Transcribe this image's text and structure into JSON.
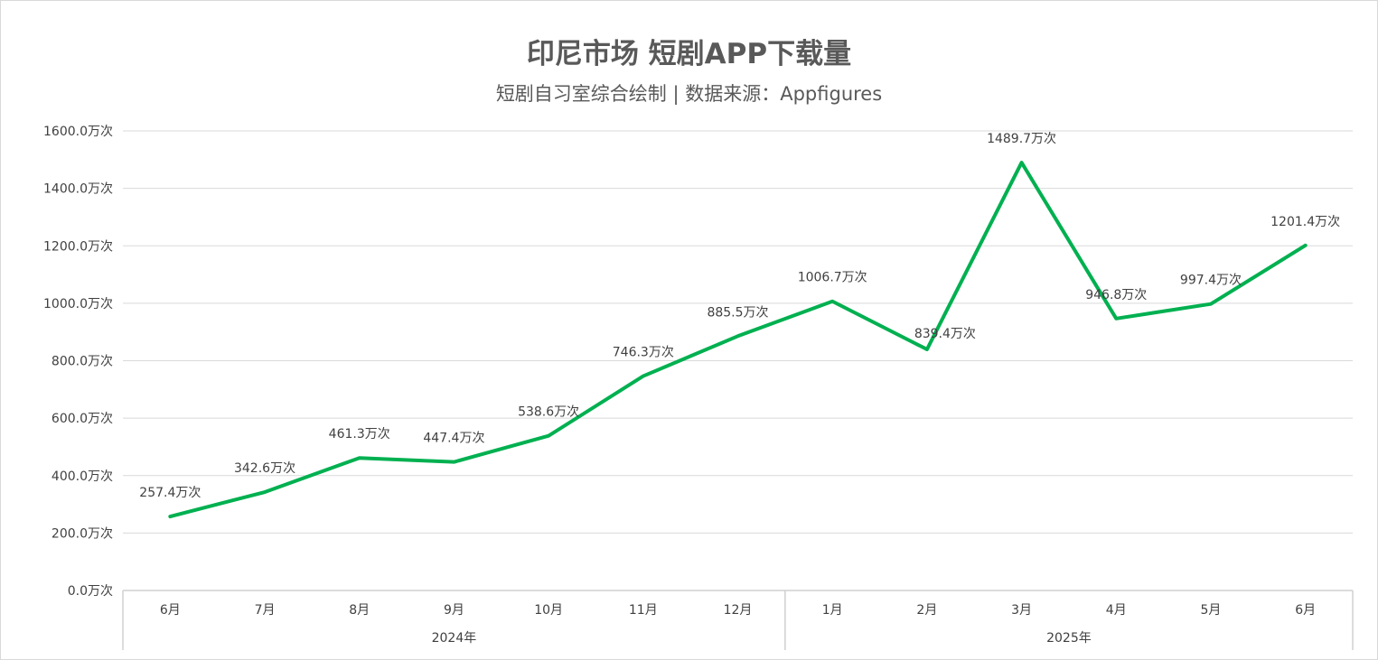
{
  "chart_data": {
    "type": "line",
    "title": "印尼市场 短剧APP下载量",
    "subtitle": "短剧自习室综合绘制 | 数据来源：Appfigures",
    "unit": "万次",
    "categories": [
      "6月",
      "7月",
      "8月",
      "9月",
      "10月",
      "11月",
      "12月",
      "1月",
      "2月",
      "3月",
      "4月",
      "5月",
      "6月"
    ],
    "groups": [
      {
        "label": "2024年",
        "count": 7
      },
      {
        "label": "2025年",
        "count": 6
      }
    ],
    "series": [
      {
        "name": "下载量",
        "values": [
          257.4,
          342.6,
          461.3,
          447.4,
          538.6,
          746.3,
          885.5,
          1006.7,
          839.4,
          1489.7,
          946.8,
          997.4,
          1201.4
        ],
        "color": "#00B050"
      }
    ],
    "data_labels": [
      "257.4万次",
      "342.6万次",
      "461.3万次",
      "447.4万次",
      "538.6万次",
      "746.3万次",
      "885.5万次",
      "1006.7万次",
      "839.4万次",
      "1489.7万次",
      "946.8万次",
      "997.4万次",
      "1201.4万次"
    ],
    "yticks": [
      "0.0万次",
      "200.0万次",
      "400.0万次",
      "600.0万次",
      "800.0万次",
      "1000.0万次",
      "1200.0万次",
      "1400.0万次",
      "1600.0万次"
    ],
    "ylim": [
      0,
      1600
    ],
    "grid": true,
    "legend": "none"
  }
}
